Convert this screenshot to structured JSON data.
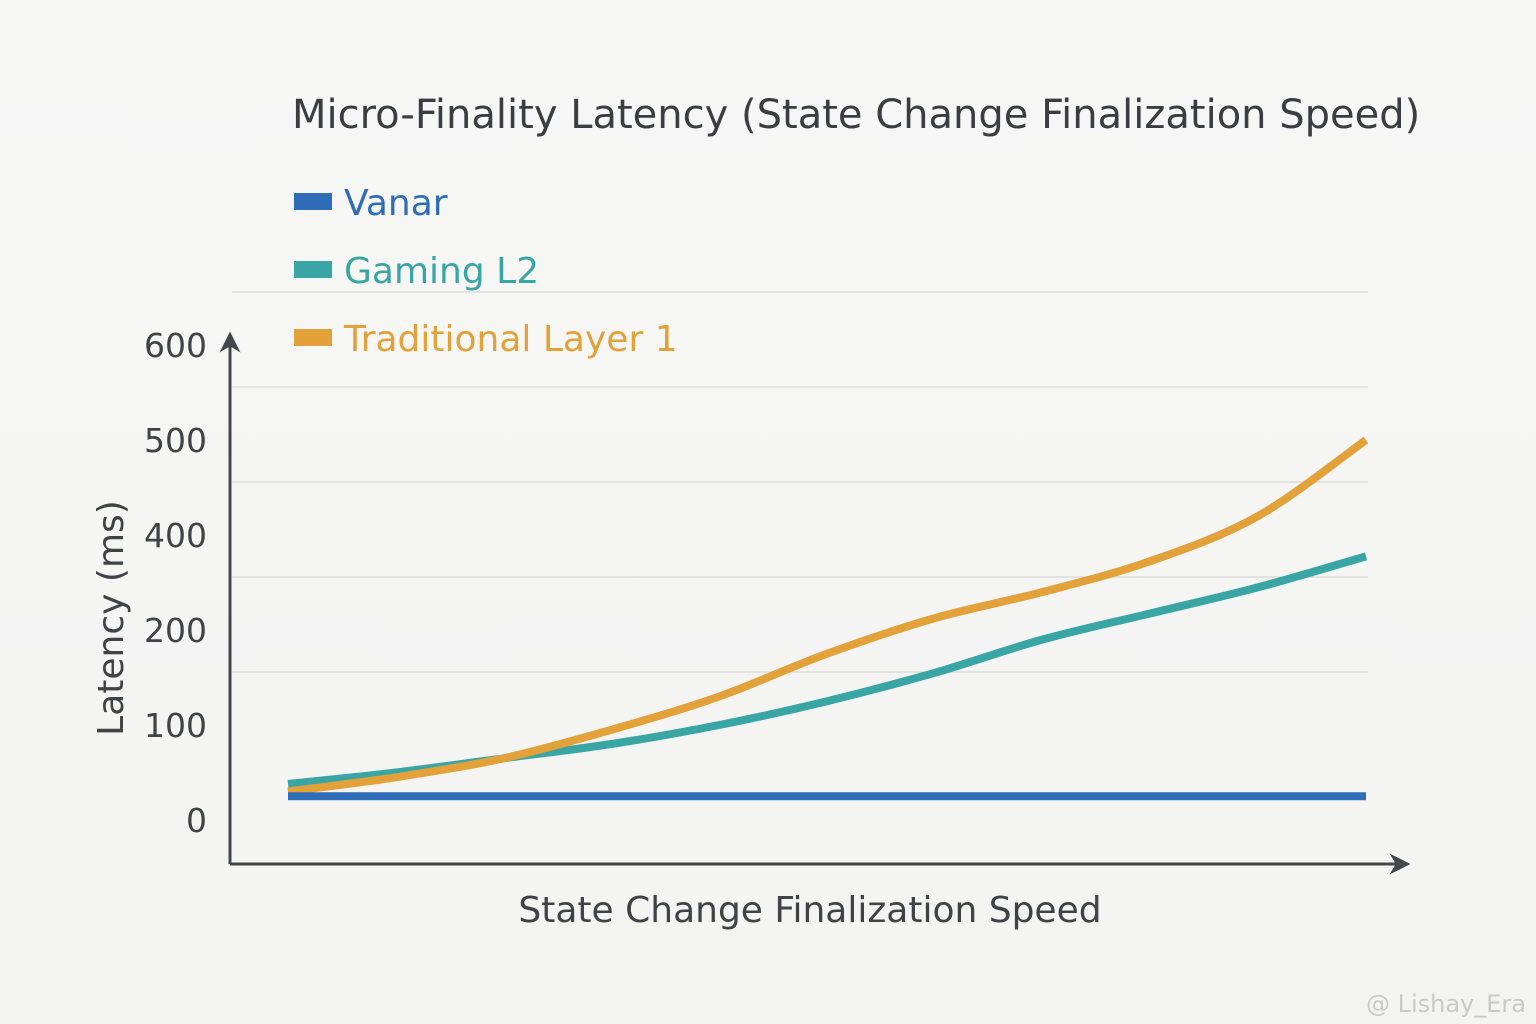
{
  "chart_data": {
    "type": "line",
    "title": "Micro-Finality Latency (State Change Finalization Speed)",
    "xlabel": "State Change Finalization Speed",
    "ylabel": "Latency (ms)",
    "y_ticks": [
      "0",
      "100",
      "200",
      "400",
      "500",
      "600"
    ],
    "x_range": [
      0,
      1
    ],
    "grid": true,
    "legend_position": "top-left",
    "series": [
      {
        "name": "Vanar",
        "color": "#2f6db8",
        "x": [
          0,
          0.25,
          0.5,
          0.75,
          1
        ],
        "values": [
          25,
          25,
          25,
          25,
          25
        ]
      },
      {
        "name": "Gaming L2",
        "color": "#3aa5a5",
        "x": [
          0,
          0.1,
          0.2,
          0.3,
          0.4,
          0.5,
          0.6,
          0.7,
          0.8,
          0.9,
          1
        ],
        "values": [
          38,
          50,
          65,
          80,
          100,
          125,
          155,
          190,
          235,
          290,
          355
        ]
      },
      {
        "name": "Traditional Layer 1",
        "color": "#e3a13a",
        "x": [
          0,
          0.1,
          0.2,
          0.3,
          0.4,
          0.5,
          0.6,
          0.7,
          0.8,
          0.9,
          1
        ],
        "values": [
          30,
          45,
          65,
          95,
          130,
          175,
          225,
          280,
          345,
          420,
          500
        ]
      }
    ]
  },
  "watermark": "@ Lishay_Era"
}
